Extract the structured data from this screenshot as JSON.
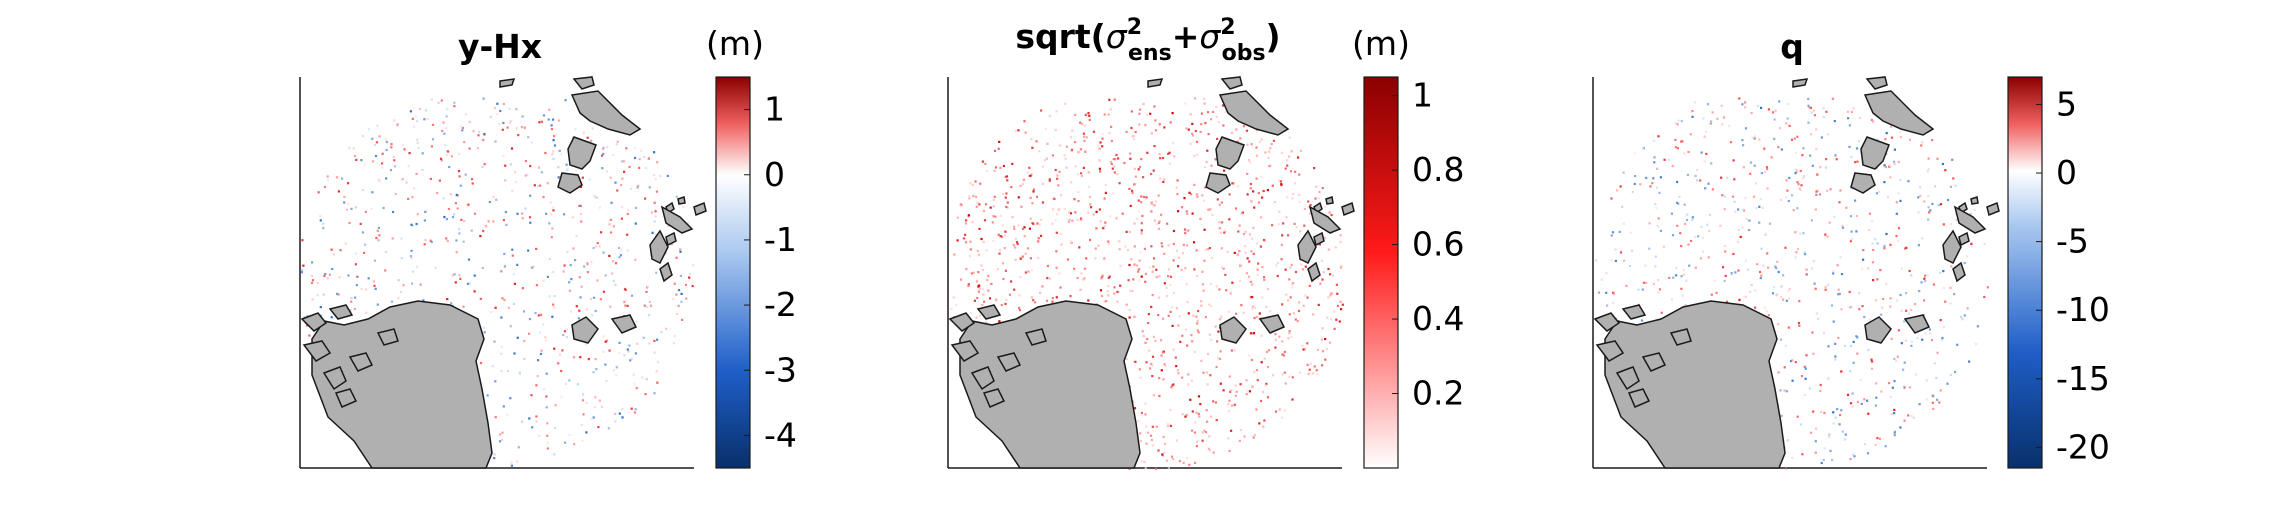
{
  "panels": [
    {
      "title": "y-Hx",
      "colorbar": {
        "unit": "(m)",
        "ticks": [
          "1",
          "0",
          "-1",
          "-2",
          "-3",
          "-4"
        ],
        "tick_values": [
          1,
          0,
          -1,
          -2,
          -3,
          -4
        ],
        "range": [
          -4.5,
          1.5
        ],
        "colormap": "diverging-blue-white-red"
      }
    },
    {
      "title": "sqrt(σ²ens+σ²obs)",
      "title_parts": {
        "prefix": "sqrt(",
        "sigma": "σ",
        "sup1": "2",
        "sub1": "ens",
        "plus": "+",
        "sup2": "2",
        "sub2": "obs",
        "suffix": ")"
      },
      "colorbar": {
        "unit": "(m)",
        "ticks": [
          "1",
          "0.8",
          "0.6",
          "0.4",
          "0.2"
        ],
        "tick_values": [
          1,
          0.8,
          0.6,
          0.4,
          0.2
        ],
        "range": [
          0,
          1.05
        ],
        "colormap": "white-red"
      }
    },
    {
      "title": "q",
      "colorbar": {
        "unit": "",
        "ticks": [
          "5",
          "0",
          "-5",
          "-10",
          "-15",
          "-20"
        ],
        "tick_values": [
          5,
          0,
          -5,
          -10,
          -15,
          -20
        ],
        "range": [
          -21.5,
          7
        ],
        "colormap": "diverging-blue-white-red"
      }
    }
  ],
  "colors": {
    "land": "#b0b0b0",
    "coast": "#1a1a1a",
    "red": "#e41a1c",
    "dark_red": "#8b0000",
    "blue": "#2166ac",
    "dark_blue": "#08306b"
  }
}
